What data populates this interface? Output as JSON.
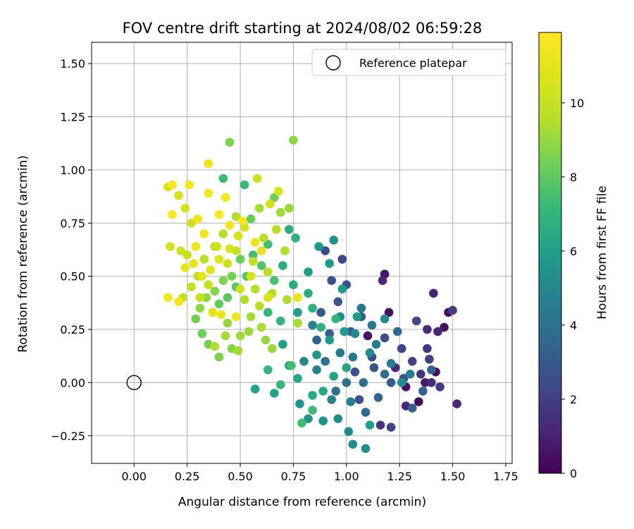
{
  "chart_data": {
    "type": "scatter",
    "title": "FOV centre drift starting at 2024/08/02 06:59:28",
    "xlabel": "Angular distance from reference (arcmin)",
    "ylabel": "Rotation from reference (arcmin)",
    "xlim": [
      -0.2,
      1.78
    ],
    "ylim": [
      -0.38,
      1.6
    ],
    "x_ticks": [
      0.0,
      0.25,
      0.5,
      0.75,
      1.0,
      1.25,
      1.5,
      1.75
    ],
    "x_tick_labels": [
      "0.00",
      "0.25",
      "0.50",
      "0.75",
      "1.00",
      "1.25",
      "1.50",
      "1.75"
    ],
    "y_ticks": [
      -0.25,
      0.0,
      0.25,
      0.5,
      0.75,
      1.0,
      1.25,
      1.5
    ],
    "y_tick_labels": [
      "−0.25",
      "0.00",
      "0.25",
      "0.50",
      "0.75",
      "1.00",
      "1.25",
      "1.50"
    ],
    "grid": true,
    "legend": {
      "placement": "upper-right",
      "entries": [
        {
          "label": "Reference platepar",
          "marker": "open-circle",
          "color": "#000000"
        }
      ]
    },
    "colorbar": {
      "label": "Hours from first FF file",
      "colormap": "viridis",
      "range": [
        0,
        11.9
      ],
      "ticks": [
        0,
        2,
        4,
        6,
        8,
        10
      ],
      "tick_labels": [
        "0",
        "2",
        "4",
        "6",
        "8",
        "10"
      ]
    },
    "reference_point": {
      "x": 0.0,
      "y": 0.0
    },
    "points": [
      [
        1.48,
        0.33,
        0.3
      ],
      [
        1.46,
        0.26,
        0.5
      ],
      [
        1.42,
        0.05,
        0.4
      ],
      [
        1.41,
        0.42,
        1.0
      ],
      [
        1.34,
        -0.09,
        0.3
      ],
      [
        1.28,
        -0.02,
        0.5
      ],
      [
        1.18,
        0.51,
        0.6
      ],
      [
        1.2,
        0.33,
        0.5
      ],
      [
        1.1,
        0.22,
        0.6
      ],
      [
        1.37,
        0.0,
        0.8
      ],
      [
        1.52,
        -0.1,
        1.2
      ],
      [
        1.43,
        0.24,
        1.2
      ],
      [
        1.38,
        0.25,
        1.3
      ],
      [
        1.4,
        0.0,
        1.4
      ],
      [
        1.28,
        -0.11,
        1.1
      ],
      [
        1.23,
        0.07,
        1.3
      ],
      [
        1.17,
        0.48,
        1.2
      ],
      [
        1.16,
        -0.2,
        1.6
      ],
      [
        1.35,
        0.04,
        1.7
      ],
      [
        1.38,
        0.16,
        1.8
      ],
      [
        1.44,
        -0.02,
        1.9
      ],
      [
        1.5,
        0.34,
        2.0
      ],
      [
        1.39,
        0.11,
        2.0
      ],
      [
        1.31,
        0.1,
        2.1
      ],
      [
        1.26,
        0.16,
        2.2
      ],
      [
        1.21,
        -0.21,
        2.1
      ],
      [
        1.33,
        0.29,
        2.3
      ],
      [
        1.18,
        0.21,
        2.4
      ],
      [
        1.12,
        0.12,
        2.5
      ],
      [
        1.06,
        -0.08,
        2.6
      ],
      [
        1.04,
        0.05,
        2.7
      ],
      [
        0.98,
        0.58,
        2.3
      ],
      [
        0.9,
        0.62,
        2.5
      ],
      [
        0.93,
        0.48,
        2.6
      ],
      [
        1.0,
        0.46,
        2.8
      ],
      [
        0.96,
        0.38,
        2.9
      ],
      [
        0.88,
        0.33,
        3.0
      ],
      [
        1.13,
        0.07,
        2.9
      ],
      [
        1.21,
        0.0,
        3.0
      ],
      [
        1.27,
        0.02,
        2.8
      ],
      [
        1.31,
        -0.12,
        3.2
      ],
      [
        1.36,
        -0.04,
        3.3
      ],
      [
        1.4,
        0.06,
        3.4
      ],
      [
        1.07,
        0.31,
        3.1
      ],
      [
        1.02,
        0.24,
        3.2
      ],
      [
        0.92,
        0.23,
        3.3
      ],
      [
        0.86,
        0.2,
        3.4
      ],
      [
        1.15,
        -0.07,
        3.5
      ],
      [
        1.09,
        -0.14,
        3.6
      ],
      [
        1.24,
        0.24,
        3.7
      ],
      [
        1.18,
        0.04,
        3.8
      ],
      [
        1.08,
        0.0,
        3.9
      ],
      [
        1.0,
        0.0,
        4.0
      ],
      [
        0.95,
        -0.04,
        4.1
      ],
      [
        0.9,
        0.1,
        4.2
      ],
      [
        1.03,
        0.12,
        4.2
      ],
      [
        1.07,
        0.35,
        4.3
      ],
      [
        0.97,
        0.14,
        4.4
      ],
      [
        1.12,
        0.27,
        4.4
      ],
      [
        1.21,
        0.09,
        4.5
      ],
      [
        1.14,
        0.18,
        4.5
      ],
      [
        1.02,
        -0.09,
        4.6
      ],
      [
        0.93,
        -0.08,
        4.7
      ],
      [
        0.86,
        0.06,
        4.8
      ],
      [
        1.3,
        0.04,
        4.6
      ],
      [
        0.8,
        0.1,
        4.9
      ],
      [
        0.84,
        0.27,
        4.8
      ],
      [
        0.97,
        0.31,
        5.0
      ],
      [
        1.04,
        0.23,
        5.0
      ],
      [
        1.11,
        0.14,
        5.1
      ],
      [
        1.18,
        0.3,
        5.1
      ],
      [
        1.26,
        0.0,
        5.2
      ],
      [
        1.01,
        -0.23,
        5.1
      ],
      [
        1.09,
        -0.31,
        5.2
      ],
      [
        1.03,
        -0.29,
        5.3
      ],
      [
        0.96,
        -0.17,
        5.4
      ],
      [
        0.89,
        -0.18,
        5.5
      ],
      [
        0.82,
        -0.17,
        5.6
      ],
      [
        0.78,
        -0.1,
        5.5
      ],
      [
        0.86,
        0.13,
        5.6
      ],
      [
        0.92,
        0.2,
        5.7
      ],
      [
        0.99,
        0.24,
        5.8
      ],
      [
        1.05,
        0.31,
        5.9
      ],
      [
        0.98,
        0.44,
        5.8
      ],
      [
        0.92,
        0.56,
        5.7
      ],
      [
        0.87,
        0.64,
        5.6
      ],
      [
        0.94,
        0.67,
        5.5
      ],
      [
        0.82,
        0.52,
        5.9
      ],
      [
        0.77,
        0.33,
        6.0
      ],
      [
        0.7,
        0.18,
        6.1
      ],
      [
        0.73,
        0.08,
        6.0
      ],
      [
        0.66,
        -0.05,
        6.2
      ],
      [
        0.57,
        -0.03,
        6.2
      ],
      [
        1.11,
        -0.2,
        6.0
      ],
      [
        1.0,
        0.07,
        6.3
      ],
      [
        0.94,
        0.03,
        6.3
      ],
      [
        0.89,
        -0.04,
        6.4
      ],
      [
        0.84,
        -0.06,
        6.5
      ],
      [
        0.77,
        0.02,
        6.4
      ],
      [
        0.82,
        0.42,
        6.6
      ],
      [
        0.75,
        0.46,
        6.6
      ],
      [
        0.7,
        0.55,
        6.7
      ],
      [
        0.73,
        0.72,
        6.7
      ],
      [
        0.76,
        0.68,
        6.8
      ],
      [
        0.84,
        0.35,
        6.8
      ],
      [
        0.88,
        0.26,
        6.9
      ],
      [
        0.95,
        0.3,
        7.0
      ],
      [
        0.69,
        0.29,
        7.0
      ],
      [
        0.63,
        0.33,
        7.1
      ],
      [
        0.63,
        0.06,
        7.1
      ],
      [
        0.69,
        -0.01,
        7.2
      ],
      [
        0.84,
        -0.13,
        7.3
      ],
      [
        0.79,
        -0.19,
        7.4
      ],
      [
        0.74,
        0.08,
        7.5
      ],
      [
        0.66,
        0.48,
        7.6
      ],
      [
        0.6,
        0.55,
        7.7
      ],
      [
        0.56,
        0.6,
        7.5
      ],
      [
        0.63,
        0.65,
        7.4
      ],
      [
        0.53,
        0.5,
        7.8
      ],
      [
        0.48,
        0.45,
        7.9
      ],
      [
        0.44,
        0.4,
        8.0
      ],
      [
        0.4,
        0.37,
        8.1
      ],
      [
        0.37,
        0.33,
        8.2
      ],
      [
        0.32,
        0.23,
        8.3
      ],
      [
        0.29,
        0.3,
        8.4
      ],
      [
        0.35,
        0.18,
        8.5
      ],
      [
        0.4,
        0.12,
        8.6
      ],
      [
        0.46,
        0.16,
        8.7
      ],
      [
        0.52,
        0.93,
        7.2
      ],
      [
        0.42,
        0.96,
        7.3
      ],
      [
        0.66,
        0.87,
        8.4
      ],
      [
        0.75,
        1.14,
        8.8
      ],
      [
        0.45,
        1.13,
        8.6
      ],
      [
        0.55,
        0.77,
        8.2
      ],
      [
        0.5,
        0.58,
        8.3
      ],
      [
        0.46,
        0.5,
        8.5
      ],
      [
        0.42,
        0.48,
        8.6
      ],
      [
        0.38,
        0.43,
        8.7
      ],
      [
        0.34,
        0.4,
        8.8
      ],
      [
        0.31,
        0.35,
        8.9
      ],
      [
        0.44,
        0.28,
        9.0
      ],
      [
        0.5,
        0.22,
        9.1
      ],
      [
        0.55,
        0.31,
        9.2
      ],
      [
        0.6,
        0.26,
        9.3
      ],
      [
        0.52,
        0.39,
        9.4
      ],
      [
        0.57,
        0.44,
        9.5
      ],
      [
        0.63,
        0.52,
        9.6
      ],
      [
        0.59,
        0.36,
        9.7
      ],
      [
        0.65,
        0.42,
        9.5
      ],
      [
        0.72,
        0.39,
        9.4
      ],
      [
        0.77,
        0.28,
        9.3
      ],
      [
        0.65,
        0.16,
        9.1
      ],
      [
        0.62,
        0.2,
        9.0
      ],
      [
        0.73,
        0.82,
        9.1
      ],
      [
        0.69,
        0.8,
        9.2
      ],
      [
        0.59,
        0.82,
        9.3
      ],
      [
        0.48,
        0.78,
        9.4
      ],
      [
        0.42,
        0.7,
        9.5
      ],
      [
        0.38,
        0.64,
        9.6
      ],
      [
        0.33,
        0.58,
        9.7
      ],
      [
        0.3,
        0.5,
        9.8
      ],
      [
        0.27,
        0.45,
        9.9
      ],
      [
        0.23,
        0.4,
        10.0
      ],
      [
        0.25,
        0.6,
        10.1
      ],
      [
        0.22,
        0.62,
        10.2
      ],
      [
        0.27,
        0.75,
        10.3
      ],
      [
        0.24,
        0.82,
        10.4
      ],
      [
        0.21,
        0.88,
        10.5
      ],
      [
        0.17,
        0.64,
        10.4
      ],
      [
        0.16,
        0.92,
        10.6
      ],
      [
        0.58,
        0.96,
        10.2
      ],
      [
        0.64,
        0.84,
        10.3
      ],
      [
        0.68,
        0.9,
        10.6
      ],
      [
        0.52,
        0.73,
        10.5
      ],
      [
        0.49,
        0.69,
        10.6
      ],
      [
        0.45,
        0.63,
        10.7
      ],
      [
        0.4,
        0.58,
        10.8
      ],
      [
        0.36,
        0.53,
        10.9
      ],
      [
        0.32,
        0.5,
        11.0
      ],
      [
        0.28,
        0.56,
        11.1
      ],
      [
        0.24,
        0.54,
        11.2
      ],
      [
        0.29,
        0.64,
        11.3
      ],
      [
        0.33,
        0.7,
        11.4
      ],
      [
        0.3,
        0.77,
        11.5
      ],
      [
        0.26,
        0.93,
        11.6
      ],
      [
        0.18,
        0.93,
        11.7
      ],
      [
        0.18,
        0.79,
        11.8
      ],
      [
        0.35,
        1.03,
        11.4
      ],
      [
        0.35,
        0.89,
        11.6
      ],
      [
        0.43,
        0.87,
        11.7
      ],
      [
        0.4,
        0.79,
        11.8
      ],
      [
        0.45,
        0.74,
        11.5
      ],
      [
        0.51,
        0.76,
        11.6
      ],
      [
        0.57,
        0.66,
        11.3
      ],
      [
        0.6,
        0.62,
        11.0
      ],
      [
        0.37,
        0.33,
        11.1
      ],
      [
        0.41,
        0.32,
        11.2
      ],
      [
        0.48,
        0.31,
        11.3
      ],
      [
        0.16,
        0.4,
        11.5
      ],
      [
        0.21,
        0.38,
        11.6
      ],
      [
        0.77,
        0.4,
        11.2
      ],
      [
        0.63,
        0.4,
        10.8
      ],
      [
        0.55,
        0.5,
        10.5
      ],
      [
        0.5,
        0.44,
        10.4
      ],
      [
        0.44,
        0.56,
        10.3
      ],
      [
        0.39,
        0.64,
        10.2
      ],
      [
        0.35,
        0.46,
        10.1
      ],
      [
        0.31,
        0.4,
        10.0
      ],
      [
        0.48,
        0.62,
        9.9
      ],
      [
        0.56,
        0.57,
        9.8
      ],
      [
        0.61,
        0.68,
        9.7
      ],
      [
        0.67,
        0.72,
        9.6
      ],
      [
        0.71,
        0.62,
        9.5
      ],
      [
        0.38,
        0.17,
        9.4
      ],
      [
        0.43,
        0.22,
        9.3
      ],
      [
        0.49,
        0.15,
        9.2
      ],
      [
        0.54,
        0.24,
        9.1
      ]
    ]
  }
}
